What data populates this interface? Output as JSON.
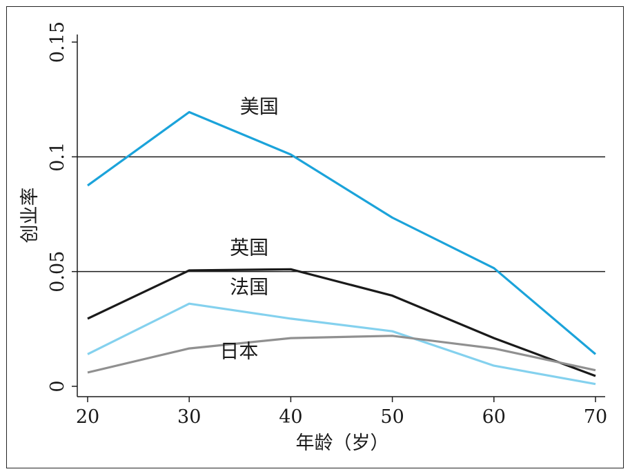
{
  "chart_data": {
    "type": "line",
    "xlabel": "年龄（岁）",
    "ylabel": "创业率",
    "xlim": [
      19,
      71
    ],
    "ylim": [
      0,
      0.155
    ],
    "x_ticks": [
      {
        "value": 20,
        "label": "20"
      },
      {
        "value": 30,
        "label": "30"
      },
      {
        "value": 40,
        "label": "40"
      },
      {
        "value": 50,
        "label": "50"
      },
      {
        "value": 60,
        "label": "60"
      },
      {
        "value": 70,
        "label": "70"
      }
    ],
    "y_ticks": [
      {
        "value": 0,
        "label": "0"
      },
      {
        "value": 0.05,
        "label": "0.05"
      },
      {
        "value": 0.1,
        "label": "0.1"
      },
      {
        "value": 0.15,
        "label": "0.15"
      }
    ],
    "reference_lines": [
      0.05,
      0.1
    ],
    "x": [
      20,
      30,
      40,
      50,
      60,
      70
    ],
    "series": [
      {
        "name": "美国",
        "color": "#1ba3da",
        "values": [
          0.0875,
          0.1195,
          0.101,
          0.0735,
          0.0515,
          0.014
        ],
        "label_at": [
          35,
          0.119
        ]
      },
      {
        "name": "英国",
        "color": "#1a1a1a",
        "values": [
          0.0295,
          0.0505,
          0.051,
          0.0395,
          0.021,
          0.0045
        ],
        "label_at": [
          34,
          0.0575
        ]
      },
      {
        "name": "法国",
        "color": "#84d1ee",
        "values": [
          0.014,
          0.036,
          0.0295,
          0.024,
          0.009,
          0.001
        ],
        "label_at": [
          34,
          0.0405
        ]
      },
      {
        "name": "日本",
        "color": "#909090",
        "values": [
          0.006,
          0.0165,
          0.021,
          0.022,
          0.0165,
          0.007
        ],
        "label_at": [
          33,
          0.0125
        ]
      }
    ]
  }
}
